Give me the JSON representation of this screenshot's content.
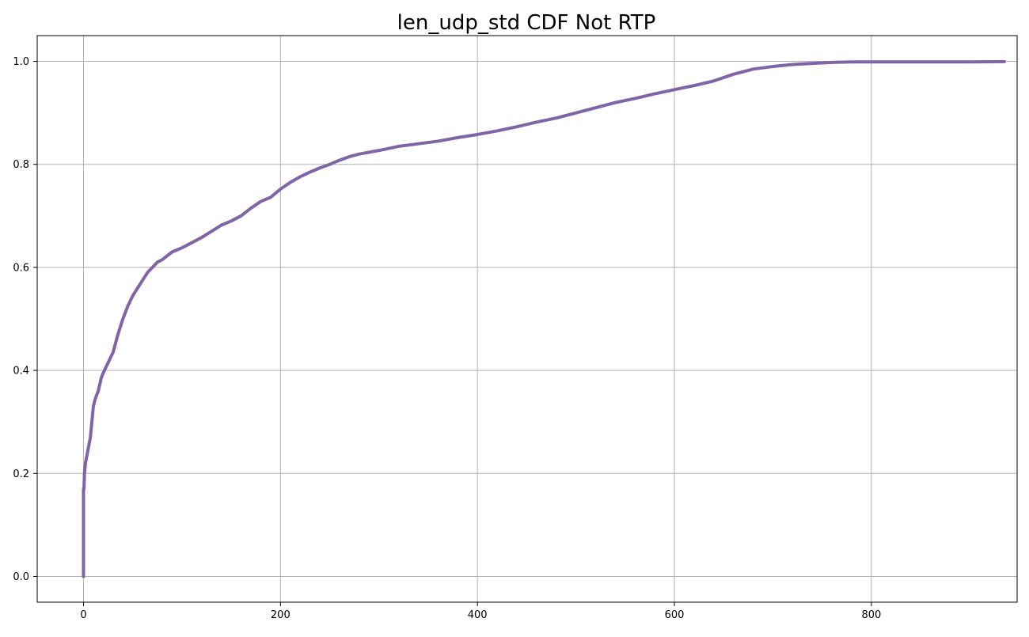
{
  "chart_data": {
    "type": "line",
    "title": "len_udp_std CDF Not RTP",
    "xlabel": "",
    "ylabel": "",
    "xlim": [
      -47,
      948
    ],
    "ylim": [
      -0.05,
      1.05
    ],
    "xticks": [
      0,
      200,
      400,
      600,
      800
    ],
    "xtick_labels": [
      "0",
      "200",
      "400",
      "600",
      "800"
    ],
    "yticks": [
      0.0,
      0.2,
      0.4,
      0.6,
      0.8,
      1.0
    ],
    "ytick_labels": [
      "0.0",
      "0.2",
      "0.4",
      "0.6",
      "0.8",
      "1.0"
    ],
    "grid": true,
    "legend": "none",
    "line_color": "#8064a8",
    "grid_color": "#b0b0b0",
    "series": [
      {
        "x": [
          0,
          0,
          0.5,
          1,
          2,
          3,
          5,
          7,
          9,
          10,
          12,
          15,
          18,
          20,
          25,
          30,
          35,
          40,
          45,
          50,
          55,
          60,
          65,
          70,
          75,
          80,
          90,
          100,
          110,
          120,
          130,
          140,
          150,
          160,
          170,
          180,
          190,
          200,
          210,
          220,
          230,
          240,
          250,
          260,
          270,
          280,
          300,
          320,
          340,
          360,
          380,
          400,
          420,
          440,
          460,
          480,
          500,
          520,
          540,
          560,
          580,
          600,
          620,
          640,
          660,
          680,
          700,
          720,
          740,
          760,
          780,
          800,
          850,
          900,
          935
        ],
        "y": [
          0.0,
          0.17,
          0.17,
          0.2,
          0.22,
          0.23,
          0.25,
          0.27,
          0.31,
          0.33,
          0.345,
          0.36,
          0.385,
          0.395,
          0.415,
          0.435,
          0.47,
          0.5,
          0.525,
          0.545,
          0.56,
          0.575,
          0.59,
          0.6,
          0.61,
          0.615,
          0.63,
          0.638,
          0.648,
          0.658,
          0.67,
          0.682,
          0.69,
          0.7,
          0.715,
          0.728,
          0.736,
          0.752,
          0.765,
          0.776,
          0.785,
          0.793,
          0.8,
          0.808,
          0.815,
          0.82,
          0.827,
          0.835,
          0.84,
          0.845,
          0.852,
          0.858,
          0.865,
          0.873,
          0.882,
          0.89,
          0.9,
          0.91,
          0.92,
          0.928,
          0.937,
          0.945,
          0.953,
          0.962,
          0.975,
          0.985,
          0.99,
          0.994,
          0.996,
          0.998,
          0.999,
          0.999,
          0.999,
          0.999,
          0.9995
        ]
      }
    ]
  }
}
